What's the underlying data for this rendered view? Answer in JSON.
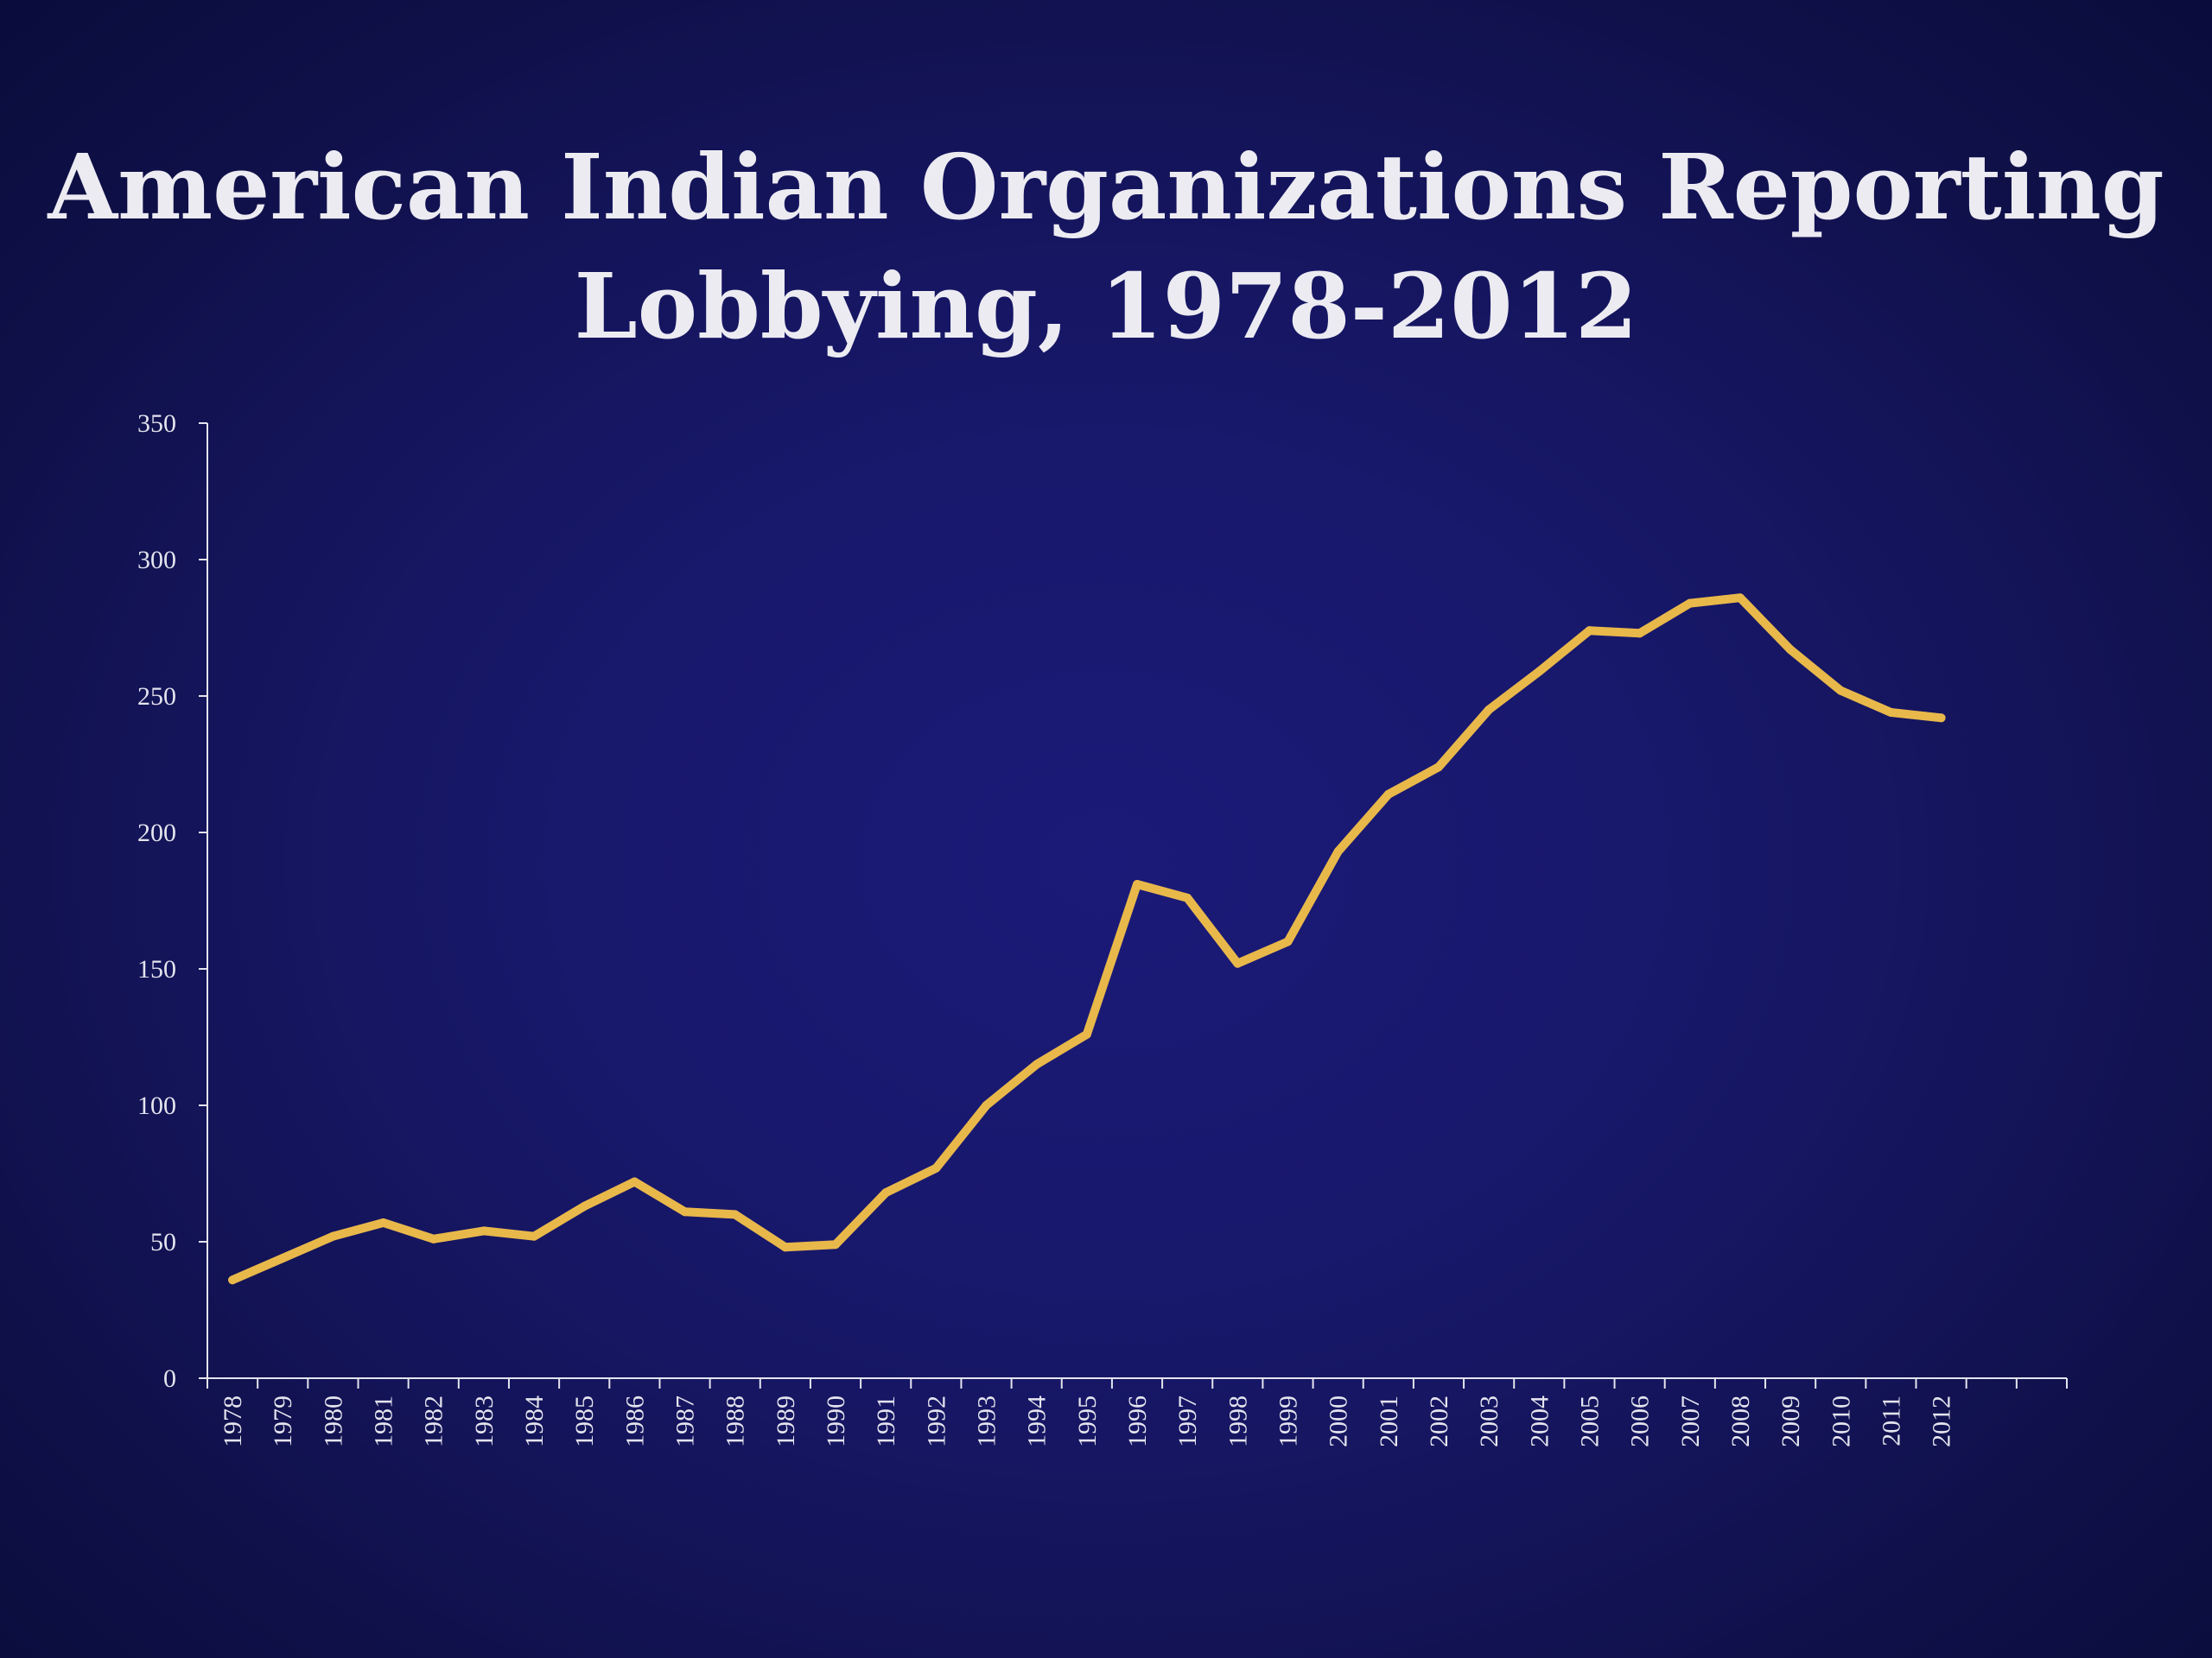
{
  "chart_data": {
    "type": "line",
    "title_lines": [
      "American Indian Organizations Reporting",
      "Lobbying, 1978-2012"
    ],
    "xlabel": "",
    "ylabel": "",
    "ylim": [
      0,
      350
    ],
    "yticks": [
      0,
      50,
      100,
      150,
      200,
      250,
      300,
      350
    ],
    "categories": [
      "1978",
      "1979",
      "1980",
      "1981",
      "1982",
      "1983",
      "1984",
      "1985",
      "1986",
      "1987",
      "1988",
      "1989",
      "1990",
      "1991",
      "1992",
      "1993",
      "1994",
      "1995",
      "1996",
      "1997",
      "1998",
      "1999",
      "2000",
      "2001",
      "2002",
      "2003",
      "2004",
      "2005",
      "2006",
      "2007",
      "2008",
      "2009",
      "2010",
      "2011",
      "2012"
    ],
    "series": [
      {
        "values": [
          36,
          44,
          52,
          57,
          51,
          54,
          52,
          63,
          72,
          61,
          60,
          48,
          49,
          68,
          77,
          100,
          115,
          126,
          181,
          176,
          152,
          160,
          193,
          214,
          224,
          245,
          259,
          274,
          273,
          284,
          286,
          267,
          252,
          244,
          242
        ],
        "color": "#e8b84a"
      }
    ],
    "grid": false,
    "legend": "none",
    "axis_color": "#e4e4ee",
    "background_color": "#18186c"
  }
}
